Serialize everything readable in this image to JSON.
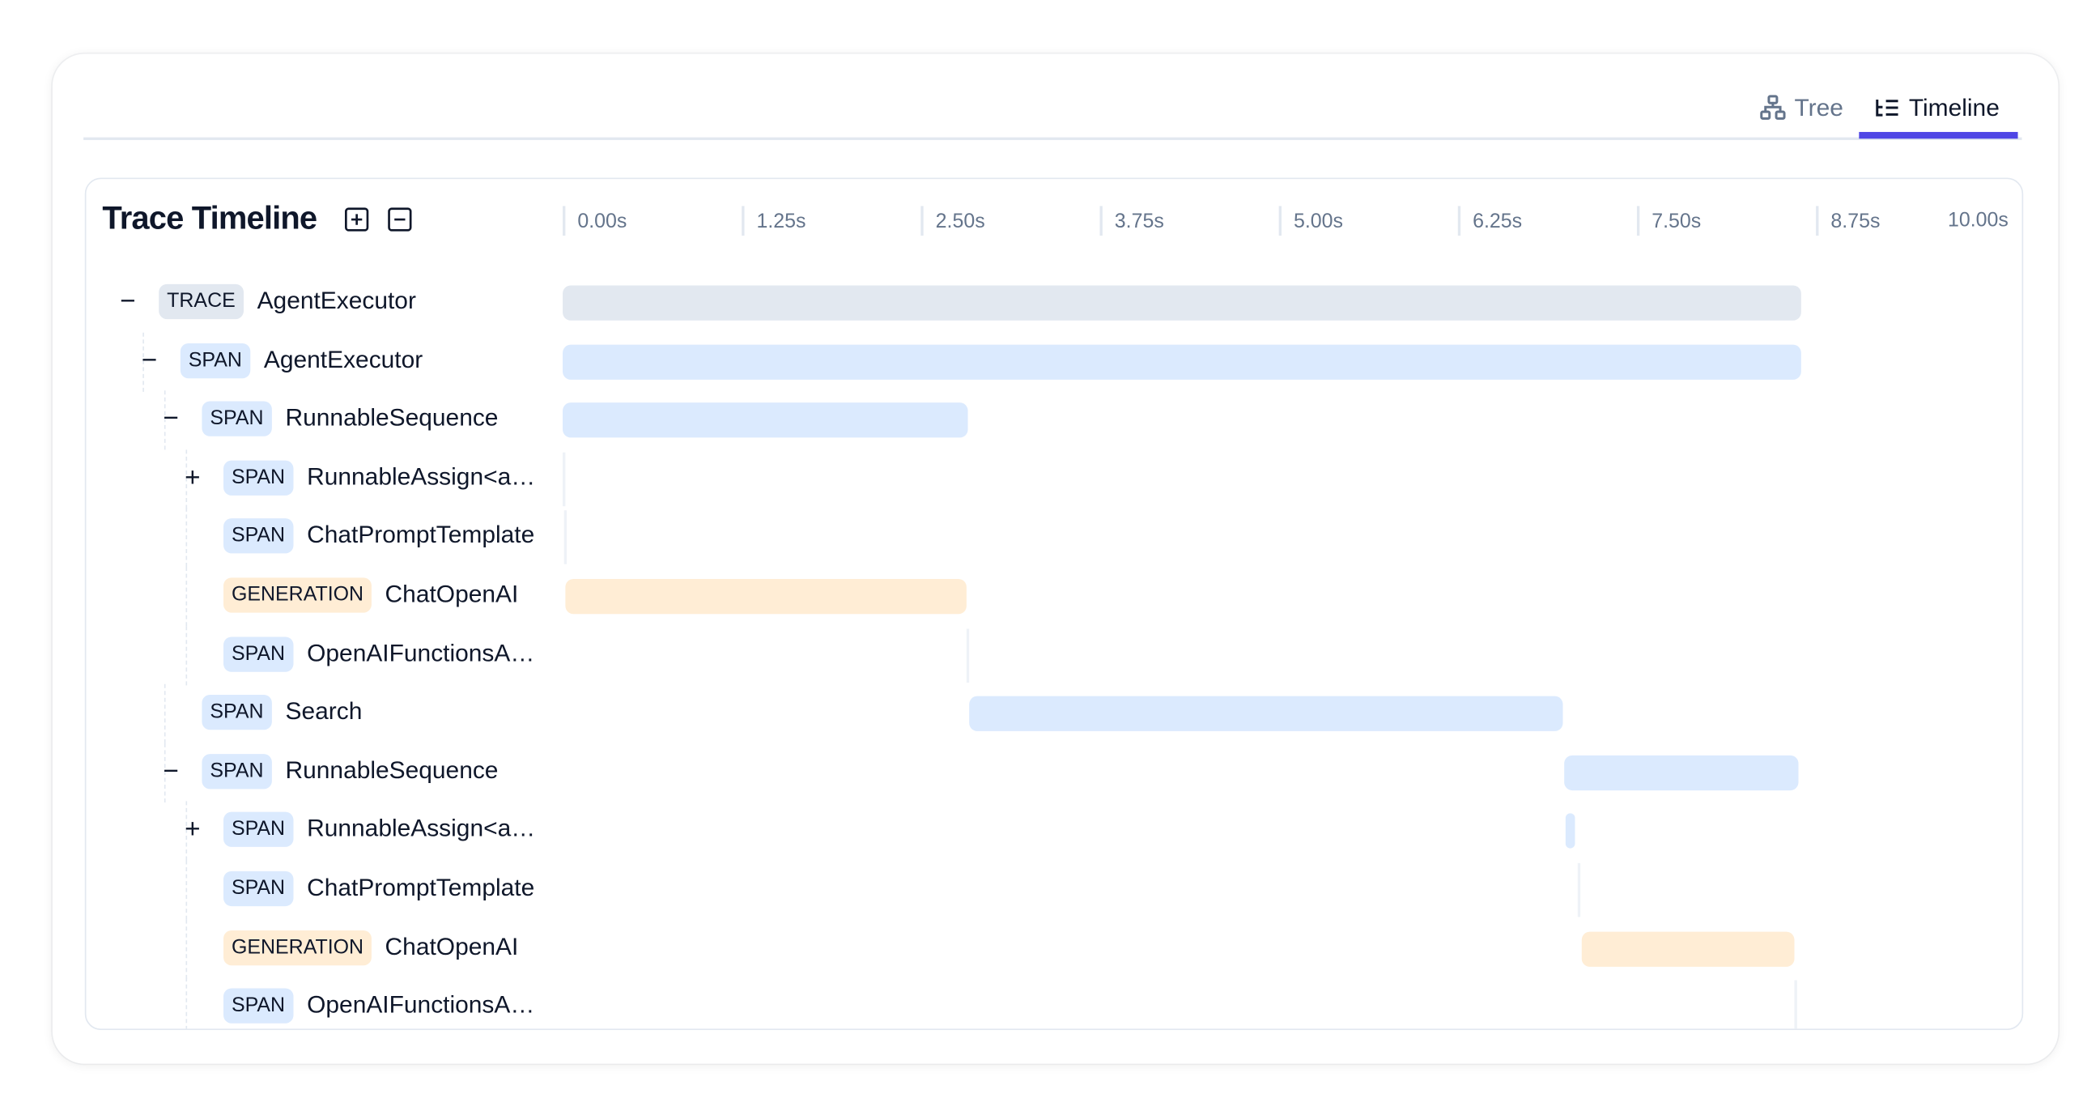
{
  "tabs": [
    {
      "label": "Tree",
      "icon": "tree-icon",
      "active": false
    },
    {
      "label": "Timeline",
      "icon": "timeline-icon",
      "active": true
    }
  ],
  "accent_color": "#4f46e5",
  "panel": {
    "title": "Trace Timeline",
    "expand_all_icon": "plus-square-icon",
    "collapse_all_icon": "minus-square-icon"
  },
  "axis": {
    "unit": "s",
    "ticks": [
      "0.00s",
      "1.25s",
      "2.50s",
      "3.75s",
      "5.00s",
      "6.25s",
      "7.50s",
      "8.75s",
      "10.00s"
    ],
    "max": 10
  },
  "type_colors": {
    "TRACE": "#e2e8f0",
    "SPAN": "#dbeafe",
    "GENERATION": "#ffedd5"
  },
  "rows": [
    {
      "level": 0,
      "toggle": "collapse",
      "type": "TRACE",
      "name": "AgentExecutor",
      "start": 0,
      "end": 8.65
    },
    {
      "level": 1,
      "toggle": "collapse",
      "type": "SPAN",
      "name": "AgentExecutor",
      "start": 0,
      "end": 8.65
    },
    {
      "level": 2,
      "toggle": "collapse",
      "type": "SPAN",
      "name": "RunnableSequence",
      "start": 0,
      "end": 2.83
    },
    {
      "level": 3,
      "toggle": "expand",
      "type": "SPAN",
      "name": "RunnableAssign<a…",
      "start": 0,
      "end": 0.01
    },
    {
      "level": 3,
      "toggle": null,
      "type": "SPAN",
      "name": "ChatPromptTemplate",
      "start": 0.01,
      "end": 0.02
    },
    {
      "level": 3,
      "toggle": null,
      "type": "GENERATION",
      "name": "ChatOpenAI",
      "start": 0.02,
      "end": 2.82
    },
    {
      "level": 3,
      "toggle": null,
      "type": "SPAN",
      "name": "OpenAIFunctionsA…",
      "start": 2.82,
      "end": 2.83
    },
    {
      "level": 2,
      "toggle": null,
      "type": "SPAN",
      "name": "Search",
      "start": 2.84,
      "end": 6.98
    },
    {
      "level": 2,
      "toggle": "collapse",
      "type": "SPAN",
      "name": "RunnableSequence",
      "start": 6.99,
      "end": 8.63
    },
    {
      "level": 3,
      "toggle": "expand",
      "type": "SPAN",
      "name": "RunnableAssign<a…",
      "start": 7.0,
      "end": 7.07
    },
    {
      "level": 3,
      "toggle": null,
      "type": "SPAN",
      "name": "ChatPromptTemplate",
      "start": 7.09,
      "end": 7.1
    },
    {
      "level": 3,
      "toggle": null,
      "type": "GENERATION",
      "name": "ChatOpenAI",
      "start": 7.11,
      "end": 8.6
    },
    {
      "level": 3,
      "toggle": null,
      "type": "SPAN",
      "name": "OpenAIFunctionsA…",
      "start": 8.6,
      "end": 8.61
    }
  ]
}
